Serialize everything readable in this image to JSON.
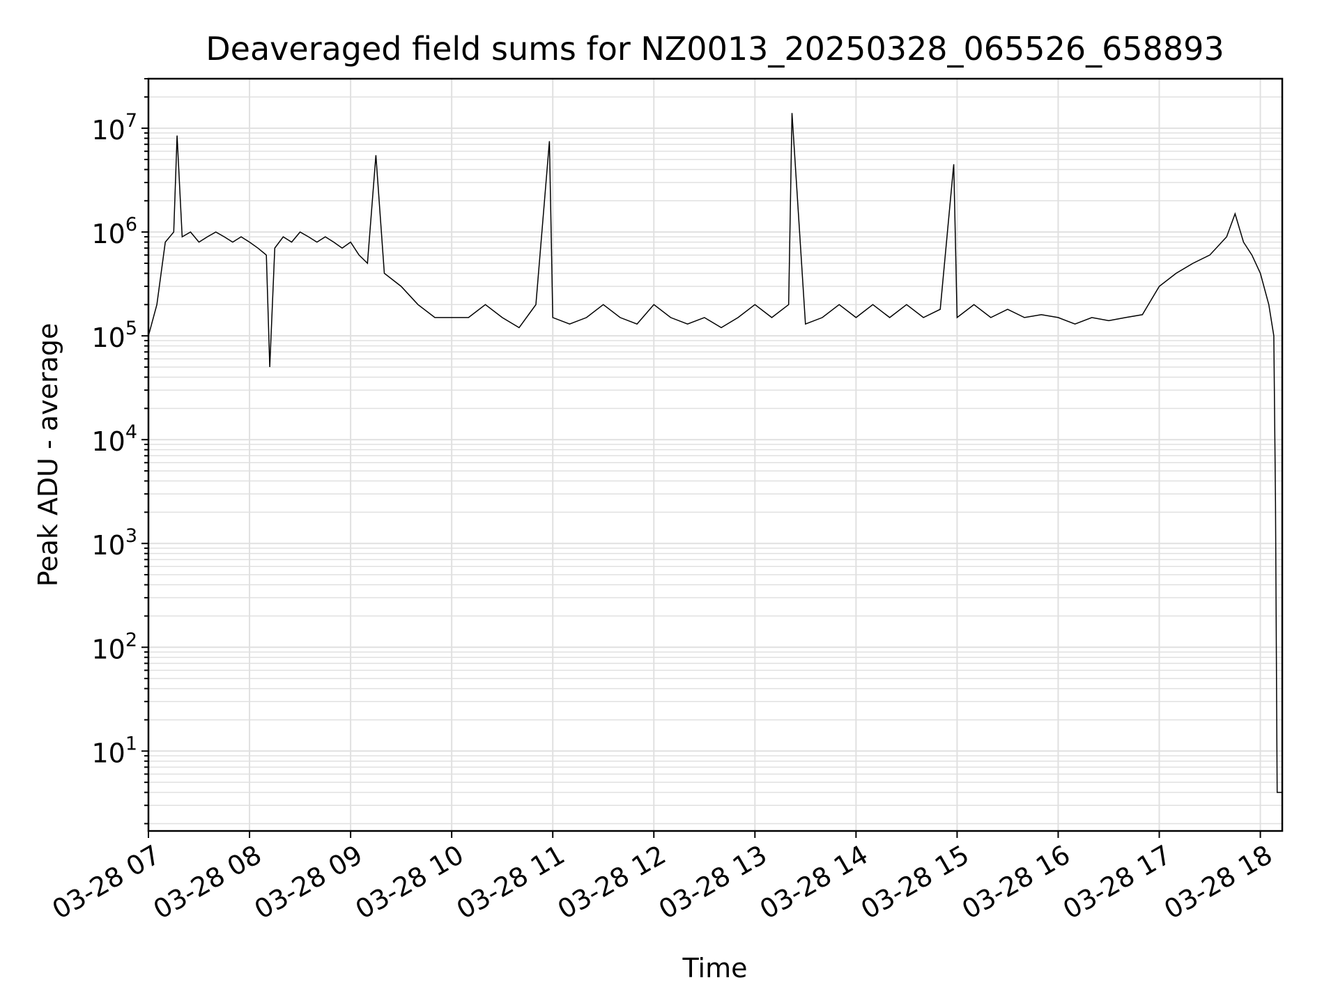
{
  "chart_data": {
    "type": "line",
    "title": "Deaveraged field sums for NZ0013_20250328_065526_658893",
    "xlabel": "Time",
    "ylabel": "Peak ADU - average",
    "y_scale": "log",
    "ylim": [
      1.7,
      30000000
    ],
    "xlim": [
      "2025-03-28 07:00",
      "2025-03-28 18:13"
    ],
    "grid": true,
    "line_color": "#000000",
    "grid_color": "#e0e0e0",
    "x_ticks": [
      "03-28 07",
      "03-28 08",
      "03-28 09",
      "03-28 10",
      "03-28 11",
      "03-28 12",
      "03-28 13",
      "03-28 14",
      "03-28 15",
      "03-28 16",
      "03-28 17",
      "03-28 18"
    ],
    "y_ticks": [
      {
        "base": "10",
        "exp": "1",
        "value": 10
      },
      {
        "base": "10",
        "exp": "2",
        "value": 100
      },
      {
        "base": "10",
        "exp": "3",
        "value": 1000
      },
      {
        "base": "10",
        "exp": "4",
        "value": 10000
      },
      {
        "base": "10",
        "exp": "5",
        "value": 100000
      },
      {
        "base": "10",
        "exp": "6",
        "value": 1000000
      },
      {
        "base": "10",
        "exp": "7",
        "value": 10000000
      }
    ],
    "series": [
      {
        "x": [
          "2025-03-28 07:00",
          "2025-03-28 07:05",
          "2025-03-28 07:10",
          "2025-03-28 07:15",
          "2025-03-28 07:17",
          "2025-03-28 07:20",
          "2025-03-28 07:25",
          "2025-03-28 07:30",
          "2025-03-28 07:35",
          "2025-03-28 07:40",
          "2025-03-28 07:45",
          "2025-03-28 07:50",
          "2025-03-28 07:55",
          "2025-03-28 08:00",
          "2025-03-28 08:05",
          "2025-03-28 08:10",
          "2025-03-28 08:12",
          "2025-03-28 08:15",
          "2025-03-28 08:20",
          "2025-03-28 08:25",
          "2025-03-28 08:30",
          "2025-03-28 08:35",
          "2025-03-28 08:40",
          "2025-03-28 08:45",
          "2025-03-28 08:50",
          "2025-03-28 08:55",
          "2025-03-28 09:00",
          "2025-03-28 09:05",
          "2025-03-28 09:10",
          "2025-03-28 09:15",
          "2025-03-28 09:20",
          "2025-03-28 09:30",
          "2025-03-28 09:40",
          "2025-03-28 09:50",
          "2025-03-28 10:00",
          "2025-03-28 10:10",
          "2025-03-28 10:20",
          "2025-03-28 10:30",
          "2025-03-28 10:40",
          "2025-03-28 10:50",
          "2025-03-28 10:58",
          "2025-03-28 11:00",
          "2025-03-28 11:10",
          "2025-03-28 11:20",
          "2025-03-28 11:30",
          "2025-03-28 11:40",
          "2025-03-28 11:50",
          "2025-03-28 12:00",
          "2025-03-28 12:10",
          "2025-03-28 12:20",
          "2025-03-28 12:30",
          "2025-03-28 12:40",
          "2025-03-28 12:50",
          "2025-03-28 13:00",
          "2025-03-28 13:10",
          "2025-03-28 13:20",
          "2025-03-28 13:22",
          "2025-03-28 13:30",
          "2025-03-28 13:40",
          "2025-03-28 13:50",
          "2025-03-28 14:00",
          "2025-03-28 14:10",
          "2025-03-28 14:20",
          "2025-03-28 14:30",
          "2025-03-28 14:40",
          "2025-03-28 14:50",
          "2025-03-28 14:58",
          "2025-03-28 15:00",
          "2025-03-28 15:10",
          "2025-03-28 15:20",
          "2025-03-28 15:30",
          "2025-03-28 15:40",
          "2025-03-28 15:50",
          "2025-03-28 16:00",
          "2025-03-28 16:10",
          "2025-03-28 16:20",
          "2025-03-28 16:30",
          "2025-03-28 16:40",
          "2025-03-28 16:50",
          "2025-03-28 17:00",
          "2025-03-28 17:10",
          "2025-03-28 17:20",
          "2025-03-28 17:30",
          "2025-03-28 17:40",
          "2025-03-28 17:45",
          "2025-03-28 17:50",
          "2025-03-28 17:55",
          "2025-03-28 18:00",
          "2025-03-28 18:05",
          "2025-03-28 18:08",
          "2025-03-28 18:09",
          "2025-03-28 18:10",
          "2025-03-28 18:13"
        ],
        "y": [
          100000,
          200000,
          800000,
          1000000,
          8500000,
          900000,
          1000000,
          800000,
          900000,
          1000000,
          900000,
          800000,
          900000,
          800000,
          700000,
          600000,
          50000,
          700000,
          900000,
          800000,
          1000000,
          900000,
          800000,
          900000,
          800000,
          700000,
          800000,
          600000,
          500000,
          5500000,
          400000,
          300000,
          200000,
          150000,
          150000,
          150000,
          200000,
          150000,
          120000,
          200000,
          7500000,
          150000,
          130000,
          150000,
          200000,
          150000,
          130000,
          200000,
          150000,
          130000,
          150000,
          120000,
          150000,
          200000,
          150000,
          200000,
          14000000,
          130000,
          150000,
          200000,
          150000,
          200000,
          150000,
          200000,
          150000,
          180000,
          4500000,
          150000,
          200000,
          150000,
          180000,
          150000,
          160000,
          150000,
          130000,
          150000,
          140000,
          150000,
          160000,
          300000,
          400000,
          500000,
          600000,
          900000,
          1500000,
          800000,
          600000,
          400000,
          200000,
          100000,
          2500,
          4,
          4
        ]
      }
    ]
  }
}
